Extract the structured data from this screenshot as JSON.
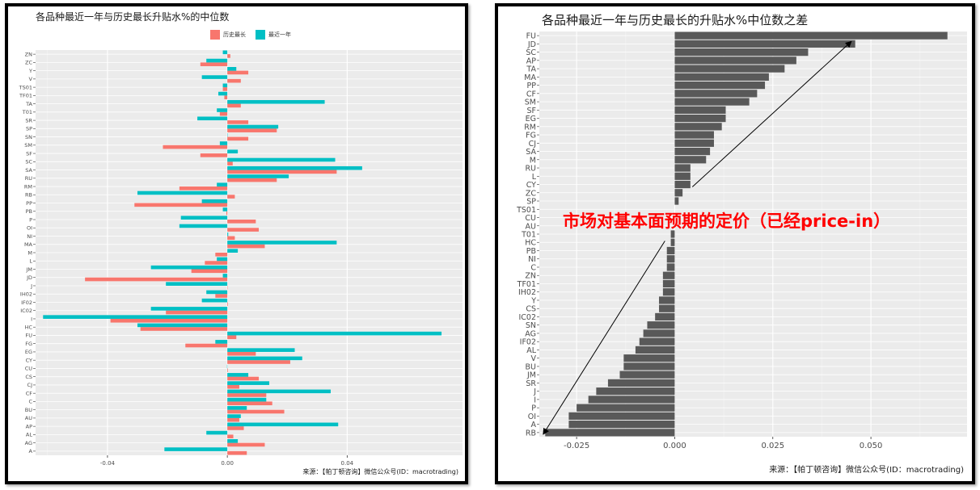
{
  "chart_data": [
    {
      "type": "bar",
      "orientation": "horizontal",
      "title": "各品种最近一年与历史最长升贴水%的中位数",
      "xlabel": "",
      "ylabel": "",
      "xlim": [
        -0.064,
        0.0785
      ],
      "x_ticks": [
        -0.04,
        0.0,
        0.04
      ],
      "x_tick_labels": [
        "-0.04",
        "0.00",
        "0.04"
      ],
      "grid": true,
      "legend_position": "top",
      "categories": [
        "ZN",
        "ZC",
        "Y",
        "V",
        "TS01",
        "TF01",
        "TA",
        "T01",
        "SR",
        "SP",
        "SN",
        "SM",
        "SF",
        "SC",
        "SA",
        "RU",
        "RM",
        "RB",
        "PP",
        "PB",
        "P",
        "OI",
        "NI",
        "MA",
        "M",
        "L",
        "JM",
        "JD",
        "J",
        "IH02",
        "IF02",
        "IC02",
        "I",
        "HC",
        "FU",
        "FG",
        "EG",
        "CY",
        "CU",
        "CS",
        "CJ",
        "CF",
        "C",
        "BU",
        "AU",
        "AP",
        "AL",
        "AG",
        "A"
      ],
      "series": [
        {
          "name": "历史最长",
          "color": "#f8766d",
          "values": [
            0.001,
            -0.009,
            0.007,
            0.0045,
            -0.0015,
            -0.001,
            0.0045,
            -0.0025,
            0.007,
            0.0165,
            0.007,
            -0.0215,
            -0.009,
            0.0018,
            0.0365,
            0.0165,
            -0.016,
            0.0025,
            -0.031,
            -0.0003,
            0.0095,
            0.0105,
            0.0025,
            0.0125,
            -0.004,
            -0.0075,
            -0.012,
            -0.0475,
            0.0001,
            -0.004,
            0.0002,
            -0.0205,
            -0.039,
            -0.029,
            0.003,
            -0.014,
            0.0095,
            0.021,
            0.0002,
            0.0105,
            0.004,
            0.013,
            0.015,
            0.019,
            0.004,
            0.0055,
            0.002,
            0.0125,
            0.0065
          ]
        },
        {
          "name": "最近一年",
          "color": "#00bfc4",
          "values": [
            -0.0015,
            -0.007,
            0.003,
            -0.0085,
            -0.0015,
            -0.003,
            0.0325,
            -0.0035,
            -0.01,
            0.017,
            0.0001,
            -0.0025,
            0.0035,
            0.036,
            0.045,
            0.0205,
            -0.0035,
            -0.03,
            -0.0085,
            -0.0015,
            -0.0155,
            -0.016,
            0.0003,
            0.0365,
            0.0035,
            -0.0035,
            -0.0255,
            -0.0015,
            -0.0205,
            -0.007,
            -0.0085,
            -0.0255,
            -0.0615,
            -0.03,
            0.0715,
            -0.004,
            0.0225,
            0.025,
            -0.0001,
            0.007,
            0.014,
            0.0345,
            0.013,
            0.0065,
            0.0045,
            0.037,
            -0.007,
            0.0035,
            -0.021
          ]
        }
      ]
    },
    {
      "type": "bar",
      "orientation": "horizontal",
      "title": "各品种最近一年与历史最长的升贴水%中位数之差",
      "xlabel": "",
      "ylabel": "",
      "xlim": [
        -0.0345,
        0.0745
      ],
      "x_ticks": [
        -0.025,
        0.0,
        0.025,
        0.05
      ],
      "x_tick_labels": [
        "-0.025",
        "0.000",
        "0.025",
        "0.050"
      ],
      "grid": true,
      "bar_color": "#595959",
      "categories": [
        "FU",
        "JD",
        "SC",
        "AP",
        "TA",
        "MA",
        "PP",
        "CF",
        "SM",
        "SF",
        "EG",
        "RM",
        "FG",
        "CJ",
        "SA",
        "M",
        "RU",
        "L",
        "CY",
        "ZC",
        "SP",
        "TS01",
        "CU",
        "AU",
        "T01",
        "HC",
        "PB",
        "NI",
        "C",
        "ZN",
        "TF01",
        "IH02",
        "Y",
        "CS",
        "IC02",
        "SN",
        "AG",
        "IF02",
        "AL",
        "V",
        "BU",
        "JM",
        "SR",
        "J",
        "I",
        "P",
        "OI",
        "A",
        "RB"
      ],
      "values": [
        0.0695,
        0.046,
        0.034,
        0.031,
        0.028,
        0.024,
        0.023,
        0.021,
        0.019,
        0.013,
        0.013,
        0.012,
        0.01,
        0.01,
        0.009,
        0.008,
        0.004,
        0.004,
        0.004,
        0.002,
        0.001,
        0.0,
        0.0,
        0.0,
        -0.001,
        -0.001,
        -0.002,
        -0.002,
        -0.002,
        -0.003,
        -0.003,
        -0.003,
        -0.004,
        -0.004,
        -0.005,
        -0.007,
        -0.008,
        -0.009,
        -0.01,
        -0.013,
        -0.013,
        -0.014,
        -0.017,
        -0.02,
        -0.022,
        -0.025,
        -0.027,
        -0.027,
        -0.033
      ],
      "annotation": "市场对基本面预期的定价（已经price-in）"
    }
  ],
  "left": {
    "title": "各品种最近一年与历史最长升贴水%的中位数",
    "legend_labels": [
      "历史最长",
      "最近一年"
    ],
    "source": "来源：【帕丁顿咨询】微信公众号(ID：macrotrading)"
  },
  "right": {
    "title": "各品种最近一年与历史最长的升贴水%中位数之差",
    "annotation": "市场对基本面预期的定价（已经price-in）",
    "source": "来源：【帕丁顿咨询】微信公众号(ID：macrotrading)"
  }
}
